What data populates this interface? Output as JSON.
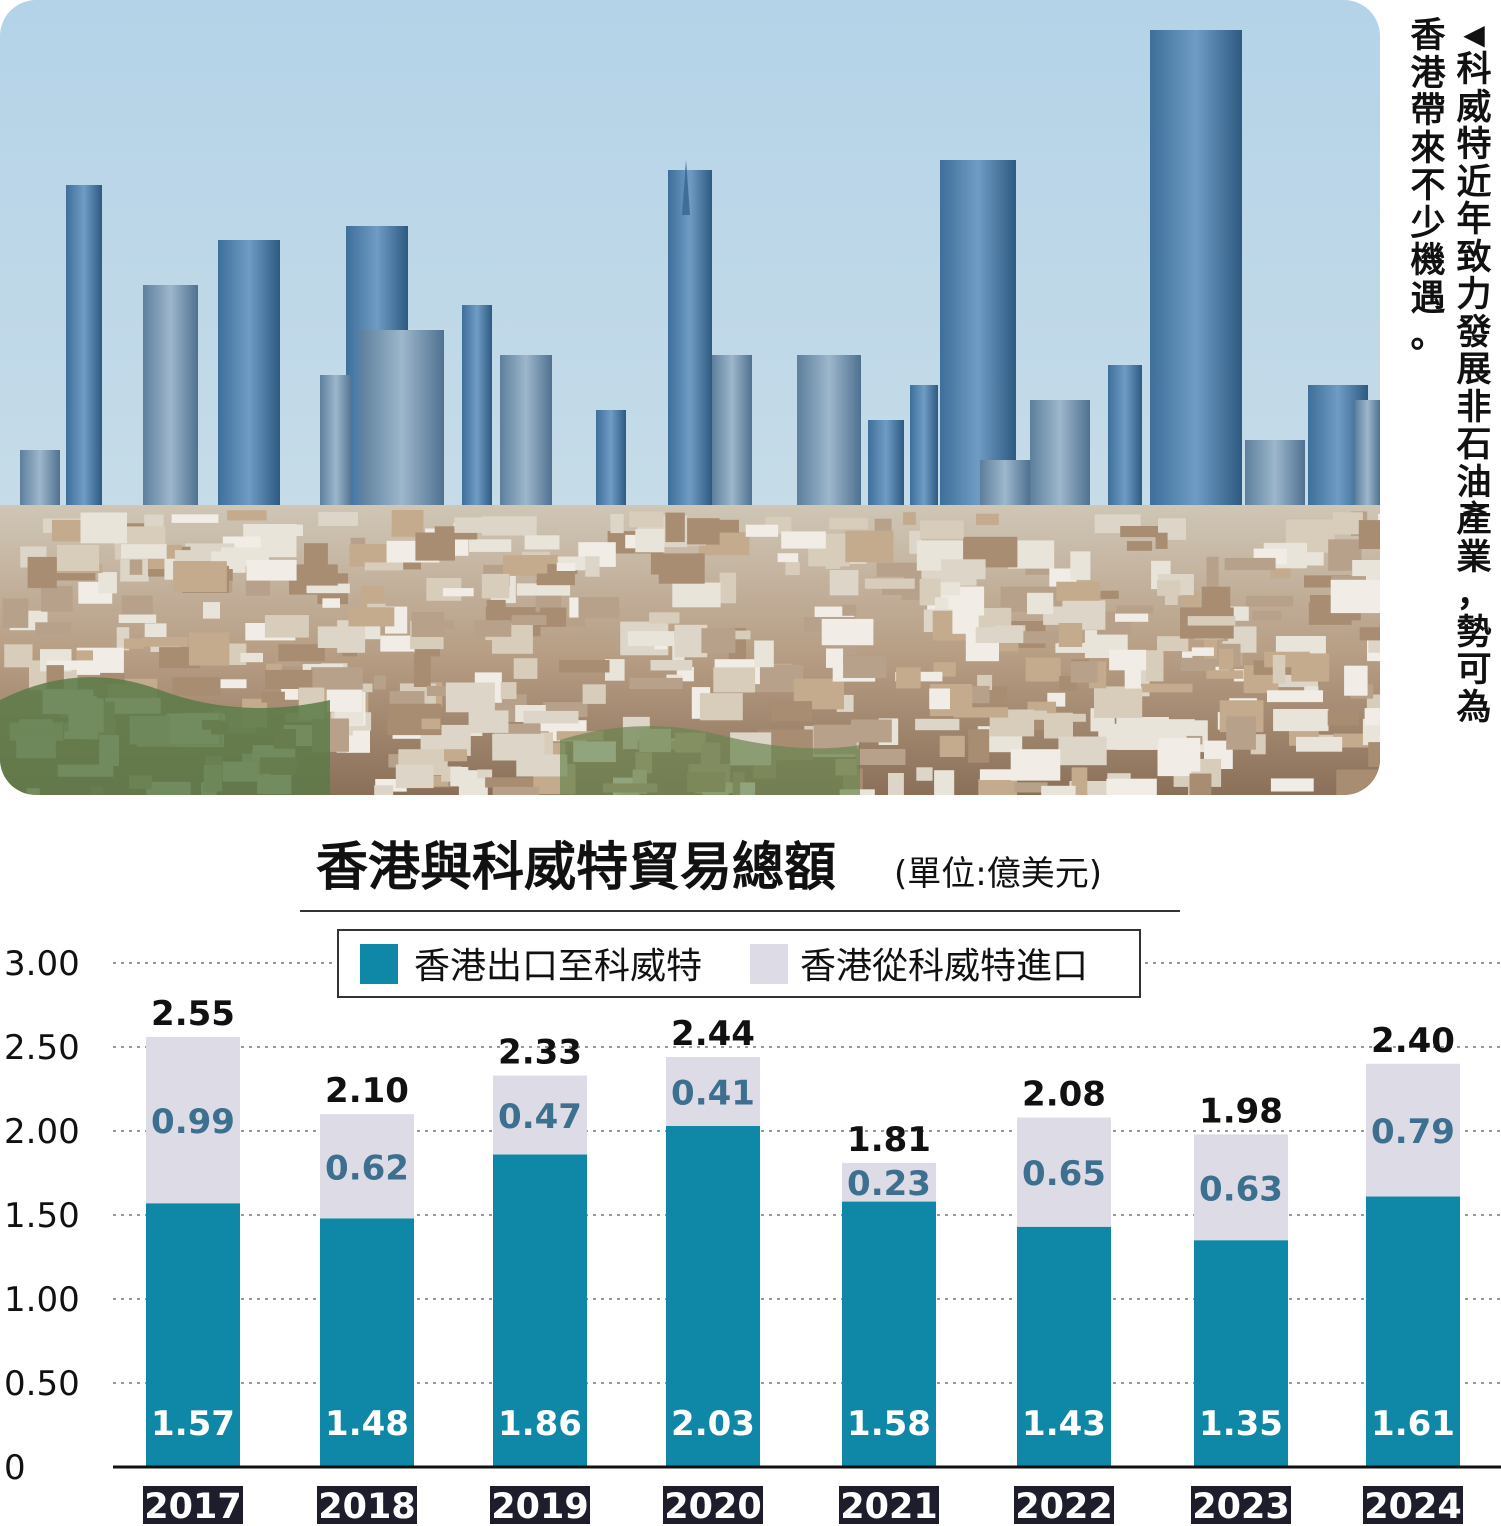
{
  "photo": {
    "subject": "city-skyline-photo",
    "caption_col1": "◀科威特近年致力發展非石油產業，勢可為",
    "caption_col2": "香港帶來不少機遇。"
  },
  "chart_data": {
    "type": "bar",
    "stacked": true,
    "title": "香港與科威特貿易總額",
    "unit": "(單位:億美元)",
    "categories": [
      "2017",
      "2018",
      "2019",
      "2020",
      "2021",
      "2022",
      "2023",
      "2024"
    ],
    "series": [
      {
        "name": "香港出口至科威特",
        "color": "#0f87a6",
        "values": [
          1.57,
          1.48,
          1.86,
          2.03,
          1.58,
          1.43,
          1.35,
          1.61
        ]
      },
      {
        "name": "香港從科威特進口",
        "color": "#dcdbe6",
        "values": [
          0.99,
          0.62,
          0.47,
          0.41,
          0.23,
          0.65,
          0.63,
          0.79
        ]
      }
    ],
    "totals": [
      "2.55",
      "2.10",
      "2.33",
      "2.44",
      "1.81",
      "2.08",
      "1.98",
      "2.40"
    ],
    "segment_labels": {
      "export": [
        "1.57",
        "1.48",
        "1.86",
        "2.03",
        "1.58",
        "1.43",
        "1.35",
        "1.61"
      ],
      "import": [
        "0.99",
        "0.62",
        "0.47",
        "0.41",
        "0.23",
        "0.65",
        "0.63",
        "0.79"
      ]
    },
    "y_ticks": [
      "3.00",
      "2.50",
      "2.00",
      "1.50",
      "1.00",
      "0.50",
      "0"
    ],
    "ylim": [
      0,
      3
    ],
    "grid": true,
    "legend_position": "top"
  }
}
